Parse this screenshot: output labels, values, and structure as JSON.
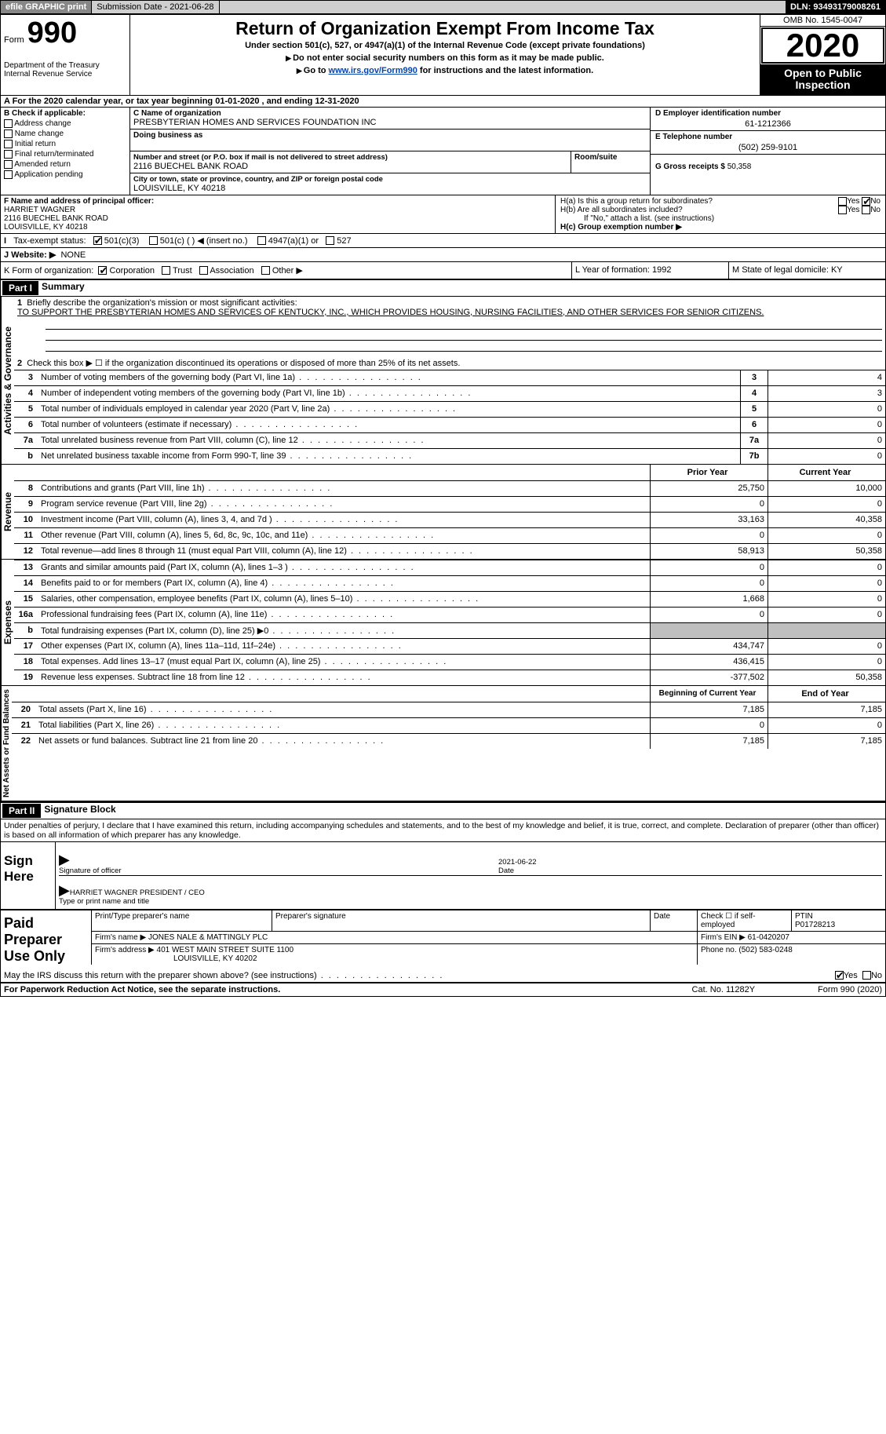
{
  "topbar": {
    "efile": "efile GRAPHIC print",
    "sub_lbl": "Submission Date -",
    "sub_val": "2021-06-28",
    "dln_lbl": "DLN:",
    "dln_val": "93493179008261"
  },
  "header": {
    "form_word": "Form",
    "form_num": "990",
    "dept": "Department of the Treasury\nInternal Revenue Service",
    "title": "Return of Organization Exempt From Income Tax",
    "subtitle": "Under section 501(c), 527, or 4947(a)(1) of the Internal Revenue Code (except private foundations)",
    "inst1": "Do not enter social security numbers on this form as it may be made public.",
    "inst2_pre": "Go to ",
    "inst2_link": "www.irs.gov/Form990",
    "inst2_post": " for instructions and the latest information.",
    "omb": "OMB No. 1545-0047",
    "year": "2020",
    "opi": "Open to Public Inspection"
  },
  "rowA": {
    "pre": "A For the 2020 calendar year, or tax year beginning ",
    "begin": "01-01-2020",
    "mid": " , and ending ",
    "end": "12-31-2020"
  },
  "B": {
    "hdr": "B Check if applicable:",
    "items": [
      "Address change",
      "Name change",
      "Initial return",
      "Final return/terminated",
      "Amended return",
      "Application pending"
    ]
  },
  "C": {
    "name_lbl": "C Name of organization",
    "name": "PRESBYTERIAN HOMES AND SERVICES FOUNDATION INC",
    "dba_lbl": "Doing business as",
    "addr_lbl": "Number and street (or P.O. box if mail is not delivered to street address)",
    "room_lbl": "Room/suite",
    "addr": "2116 BUECHEL BANK ROAD",
    "city_lbl": "City or town, state or province, country, and ZIP or foreign postal code",
    "city": "LOUISVILLE, KY  40218"
  },
  "D": {
    "lbl": "D Employer identification number",
    "val": "61-1212366"
  },
  "E": {
    "lbl": "E Telephone number",
    "val": "(502) 259-9101"
  },
  "G": {
    "lbl": "G Gross receipts $",
    "val": "50,358"
  },
  "F": {
    "lbl": "F Name and address of principal officer:",
    "name": "HARRIET WAGNER",
    "addr": "2116 BUECHEL BANK ROAD",
    "city": "LOUISVILLE, KY  40218"
  },
  "H": {
    "a": "H(a)  Is this a group return for subordinates?",
    "b": "H(b)  Are all subordinates included?",
    "note": "If \"No,\" attach a list. (see instructions)",
    "c": "H(c)  Group exemption number ▶",
    "yes": "Yes",
    "no": "No"
  },
  "I": {
    "lbl": "Tax-exempt status:",
    "opts": [
      "501(c)(3)",
      "501(c) ( )  ◀ (insert no.)",
      "4947(a)(1) or",
      "527"
    ]
  },
  "J": {
    "lbl": "J  Website: ▶",
    "val": "NONE"
  },
  "K": {
    "lbl": "K Form of organization:",
    "opts": [
      "Corporation",
      "Trust",
      "Association",
      "Other ▶"
    ],
    "L": "L Year of formation: 1992",
    "M": "M State of legal domicile: KY"
  },
  "partI": {
    "hdr": "Part I",
    "title": "Summary"
  },
  "briefly": {
    "n": "1",
    "lbl": "Briefly describe the organization's mission or most significant activities:",
    "txt": "TO SUPPORT THE PRESBYTERIAN HOMES AND SERVICES OF KENTUCKY, INC., WHICH PROVIDES HOUSING, NURSING FACILITIES, AND OTHER SERVICES FOR SENIOR CITIZENS."
  },
  "line2": {
    "n": "2",
    "txt": "Check this box ▶ ☐ if the organization discontinued its operations or disposed of more than 25% of its net assets."
  },
  "gov_rows": [
    {
      "n": "3",
      "txt": "Number of voting members of the governing body (Part VI, line 1a)",
      "box": "3",
      "val": "4"
    },
    {
      "n": "4",
      "txt": "Number of independent voting members of the governing body (Part VI, line 1b)",
      "box": "4",
      "val": "3"
    },
    {
      "n": "5",
      "txt": "Total number of individuals employed in calendar year 2020 (Part V, line 2a)",
      "box": "5",
      "val": "0"
    },
    {
      "n": "6",
      "txt": "Total number of volunteers (estimate if necessary)",
      "box": "6",
      "val": "0"
    },
    {
      "n": "7a",
      "txt": "Total unrelated business revenue from Part VIII, column (C), line 12",
      "box": "7a",
      "val": "0"
    },
    {
      "n": "b",
      "txt": "Net unrelated business taxable income from Form 990-T, line 39",
      "box": "7b",
      "val": "0"
    }
  ],
  "pycy": {
    "py": "Prior Year",
    "cy": "Current Year",
    "bcy": "Beginning of Current Year",
    "eoy": "End of Year"
  },
  "rev_rows": [
    {
      "n": "8",
      "txt": "Contributions and grants (Part VIII, line 1h)",
      "py": "25,750",
      "cy": "10,000"
    },
    {
      "n": "9",
      "txt": "Program service revenue (Part VIII, line 2g)",
      "py": "0",
      "cy": "0"
    },
    {
      "n": "10",
      "txt": "Investment income (Part VIII, column (A), lines 3, 4, and 7d )",
      "py": "33,163",
      "cy": "40,358"
    },
    {
      "n": "11",
      "txt": "Other revenue (Part VIII, column (A), lines 5, 6d, 8c, 9c, 10c, and 11e)",
      "py": "0",
      "cy": "0"
    },
    {
      "n": "12",
      "txt": "Total revenue—add lines 8 through 11 (must equal Part VIII, column (A), line 12)",
      "py": "58,913",
      "cy": "50,358"
    }
  ],
  "exp_rows": [
    {
      "n": "13",
      "txt": "Grants and similar amounts paid (Part IX, column (A), lines 1–3 )",
      "py": "0",
      "cy": "0"
    },
    {
      "n": "14",
      "txt": "Benefits paid to or for members (Part IX, column (A), line 4)",
      "py": "0",
      "cy": "0"
    },
    {
      "n": "15",
      "txt": "Salaries, other compensation, employee benefits (Part IX, column (A), lines 5–10)",
      "py": "1,668",
      "cy": "0"
    },
    {
      "n": "16a",
      "txt": "Professional fundraising fees (Part IX, column (A), line 11e)",
      "py": "0",
      "cy": "0"
    },
    {
      "n": "b",
      "txt": "Total fundraising expenses (Part IX, column (D), line 25) ▶0",
      "py": "",
      "cy": "",
      "shade": true
    },
    {
      "n": "17",
      "txt": "Other expenses (Part IX, column (A), lines 11a–11d, 11f–24e)",
      "py": "434,747",
      "cy": "0"
    },
    {
      "n": "18",
      "txt": "Total expenses. Add lines 13–17 (must equal Part IX, column (A), line 25)",
      "py": "436,415",
      "cy": "0"
    },
    {
      "n": "19",
      "txt": "Revenue less expenses. Subtract line 18 from line 12",
      "py": "-377,502",
      "cy": "50,358"
    }
  ],
  "na_rows": [
    {
      "n": "20",
      "txt": "Total assets (Part X, line 16)",
      "py": "7,185",
      "cy": "7,185"
    },
    {
      "n": "21",
      "txt": "Total liabilities (Part X, line 26)",
      "py": "0",
      "cy": "0"
    },
    {
      "n": "22",
      "txt": "Net assets or fund balances. Subtract line 21 from line 20",
      "py": "7,185",
      "cy": "7,185"
    }
  ],
  "side": {
    "gov": "Activities & Governance",
    "rev": "Revenue",
    "exp": "Expenses",
    "na": "Net Assets or Fund Balances"
  },
  "partII": {
    "hdr": "Part II",
    "title": "Signature Block"
  },
  "declare": "Under penalties of perjury, I declare that I have examined this return, including accompanying schedules and statements, and to the best of my knowledge and belief, it is true, correct, and complete. Declaration of preparer (other than officer) is based on all information of which preparer has any knowledge.",
  "sign": {
    "here": "Sign Here",
    "sig_lbl": "Signature of officer",
    "date_lbl": "Date",
    "date": "2021-06-22",
    "name": "HARRIET WAGNER  PRESIDENT / CEO",
    "type_lbl": "Type or print name and title"
  },
  "prep": {
    "hdr": "Paid Preparer Use Only",
    "r1": {
      "c1": "Print/Type preparer's name",
      "c2": "Preparer's signature",
      "c3": "Date",
      "c4_lbl": "Check ☐ if self-employed",
      "c5_lbl": "PTIN",
      "c5": "P01728213"
    },
    "r2": {
      "lbl": "Firm's name    ▶",
      "val": "JONES NALE & MATTINGLY PLC",
      "ein_lbl": "Firm's EIN ▶",
      "ein": "61-0420207"
    },
    "r3": {
      "lbl": "Firm's address ▶",
      "val": "401 WEST MAIN STREET SUITE 1100",
      "city": "LOUISVILLE, KY  40202",
      "ph_lbl": "Phone no.",
      "ph": "(502) 583-0248"
    }
  },
  "discuss": {
    "txt": "May the IRS discuss this return with the preparer shown above? (see instructions)",
    "yes": "Yes",
    "no": "No"
  },
  "footer": {
    "l": "For Paperwork Reduction Act Notice, see the separate instructions.",
    "m": "Cat. No. 11282Y",
    "r": "Form 990 (2020)"
  },
  "colors": {
    "link": "#0645AD",
    "shade": "#bfbfbf",
    "topbar": "#cfcfcf",
    "btn": "#878787"
  }
}
